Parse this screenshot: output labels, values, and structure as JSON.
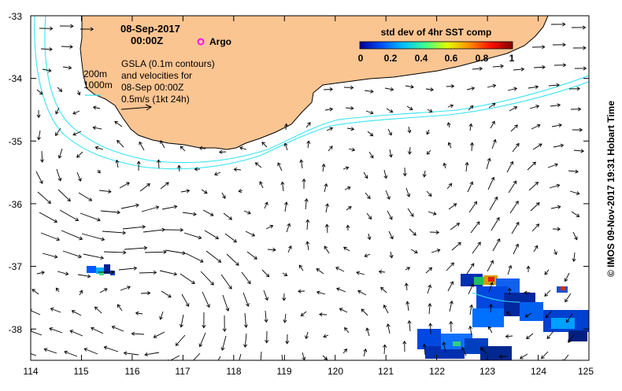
{
  "header": {
    "date": "08-Sep-2017",
    "time": "00:00Z",
    "argo_label": "Argo"
  },
  "legend": {
    "colorbar_title": "std dev of 4hr SST comp",
    "colorbar_ticks": [
      "0",
      "0.2",
      "0.4",
      "0.6",
      "0.8",
      "1"
    ],
    "colorbar_colors": [
      "#000090",
      "#0050ff",
      "#00c0ff",
      "#40ff90",
      "#e0ff00",
      "#ff9000",
      "#ff1000",
      "#800000"
    ],
    "isobath_200": "200m",
    "isobath_1000": "1000m",
    "gsla_line1": "GSLA (0.1m contours)",
    "gsla_line2": "and velocities for",
    "gsla_line3": "08-Sep 00:00Z",
    "scale_label": "0.5m/s (1kt 24h)"
  },
  "axes": {
    "x_ticks": [
      "114",
      "115",
      "116",
      "117",
      "118",
      "119",
      "120",
      "121",
      "122",
      "123",
      "124",
      "125"
    ],
    "y_ticks": [
      "-33",
      "-34",
      "-35",
      "-36",
      "-37",
      "-38"
    ],
    "xlim": [
      114,
      125
    ],
    "ylim": [
      -38.5,
      -33
    ]
  },
  "credit": "© IMOS 09-Nov-2017 19:31 Hobart Time",
  "colors": {
    "land": "#fbc592",
    "isobath": "#36e4f0",
    "argo": "#ff00ff"
  }
}
